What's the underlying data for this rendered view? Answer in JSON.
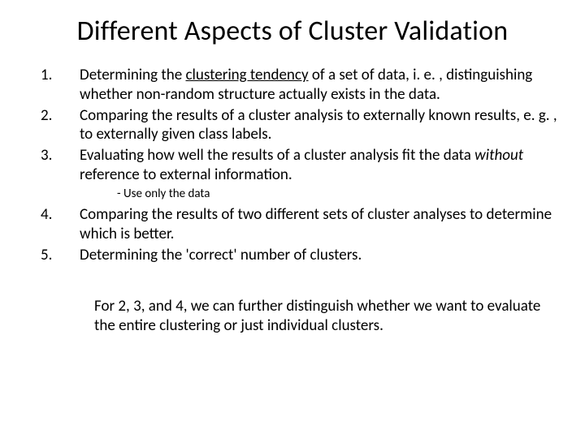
{
  "title": "Different Aspects of Cluster Validation",
  "items": {
    "n1": "1.",
    "t1a": "Determining the ",
    "t1b": "clustering tendency",
    "t1c": " of a set of data, i. e. , distinguishing whether non-random structure actually exists in the data.",
    "n2": "2.",
    "t2": "Comparing the results of a cluster analysis to externally known results, e. g. , to externally given class labels.",
    "n3": "3.",
    "t3a": "Evaluating how well the results of a cluster analysis fit the data ",
    "t3b": "without",
    "t3c": " reference to external information.",
    "sub3": "- Use only the data",
    "n4": "4.",
    "t4": "Comparing the results of two different sets of cluster analyses to determine which is better.",
    "n5": "5.",
    "t5": "Determining the 'correct' number of clusters.",
    "footer": "For 2, 3, and 4, we can further distinguish whether we want to evaluate the entire clustering or just individual clusters."
  },
  "style": {
    "background_color": "#ffffff",
    "text_color": "#000000",
    "title_fontsize": 34,
    "body_fontsize": 19,
    "sub_fontsize": 15,
    "font_family": "Calibri"
  }
}
